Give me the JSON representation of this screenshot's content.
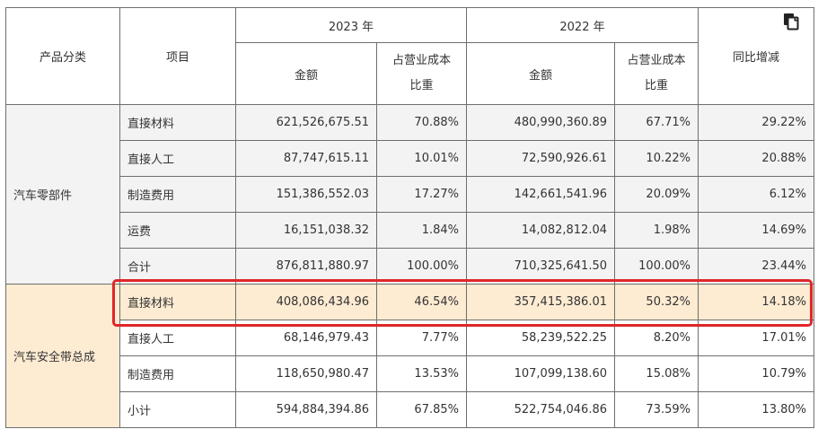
{
  "header": {
    "category": "产品分类",
    "item": "项目",
    "year_2023": "2023 年",
    "year_2022": "2022 年",
    "amount": "金额",
    "ratio_line1": "占营业成本",
    "ratio_line2": "比重",
    "yoy": "同比增减"
  },
  "groups": [
    {
      "category": "汽车零部件",
      "rows": [
        {
          "item": "直接材料",
          "amt_2023": "621,526,675.51",
          "pct_2023": "70.88%",
          "amt_2022": "480,990,360.89",
          "pct_2022": "67.71%",
          "yoy": "29.22%"
        },
        {
          "item": "直接人工",
          "amt_2023": "87,747,615.11",
          "pct_2023": "10.01%",
          "amt_2022": "72,590,926.61",
          "pct_2022": "10.22%",
          "yoy": "20.88%"
        },
        {
          "item": "制造费用",
          "amt_2023": "151,386,552.03",
          "pct_2023": "17.27%",
          "amt_2022": "142,661,541.96",
          "pct_2022": "20.09%",
          "yoy": "6.12%"
        },
        {
          "item": "运费",
          "amt_2023": "16,151,038.32",
          "pct_2023": "1.84%",
          "amt_2022": "14,082,812.04",
          "pct_2022": "1.98%",
          "yoy": "14.69%"
        },
        {
          "item": "合计",
          "amt_2023": "876,811,880.97",
          "pct_2023": "100.00%",
          "amt_2022": "710,325,641.50",
          "pct_2022": "100.00%",
          "yoy": "23.44%"
        }
      ]
    },
    {
      "category": "汽车安全带总成",
      "rows": [
        {
          "item": "直接材料",
          "amt_2023": "408,086,434.96",
          "pct_2023": "46.54%",
          "amt_2022": "357,415,386.01",
          "pct_2022": "50.32%",
          "yoy": "14.18%"
        },
        {
          "item": "直接人工",
          "amt_2023": "68,146,979.43",
          "pct_2023": "7.77%",
          "amt_2022": "58,239,522.25",
          "pct_2022": "8.20%",
          "yoy": "17.01%"
        },
        {
          "item": "制造费用",
          "amt_2023": "118,650,980.47",
          "pct_2023": "13.53%",
          "amt_2022": "107,099,138.60",
          "pct_2022": "15.08%",
          "yoy": "10.79%"
        },
        {
          "item": "小计",
          "amt_2023": "594,884,394.86",
          "pct_2023": "67.85%",
          "amt_2022": "522,754,046.86",
          "pct_2022": "73.59%",
          "yoy": "13.80%"
        }
      ]
    }
  ],
  "icons": {
    "copy": "copy-icon"
  },
  "colors": {
    "highlight_border": "#e0262a",
    "group2_fill": "#fdebd2",
    "group1_fill": "#f3f3f3"
  }
}
